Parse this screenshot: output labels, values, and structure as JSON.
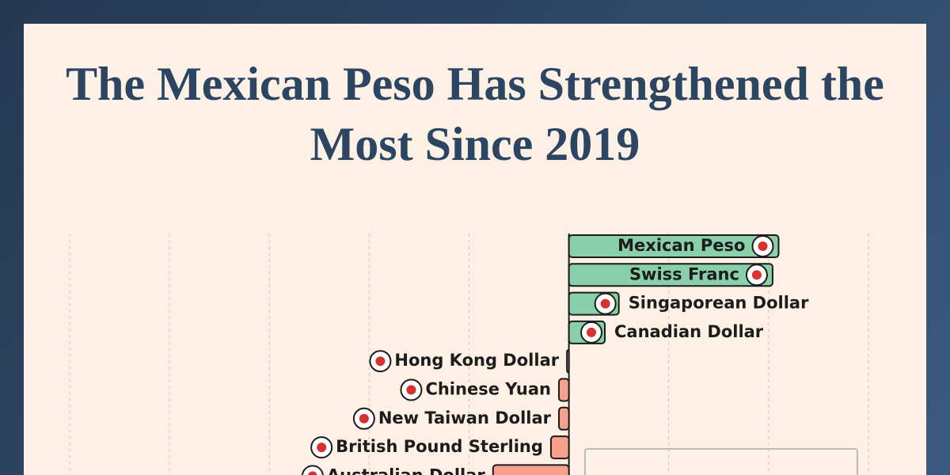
{
  "chart_data": {
    "type": "bar",
    "orientation": "horizontal",
    "title": "The Mexican Peso Has Strengthened the Most Since 2019",
    "categories": [
      "Mexican Peso",
      "Swiss Franc",
      "Singaporean Dollar",
      "Canadian Dollar",
      "Hong Kong Dollar",
      "Chinese Yuan",
      "New Taiwan Dollar",
      "British Pound Sterling",
      "Australian Dollar"
    ],
    "values": [
      10.5,
      10.2,
      2.5,
      1.8,
      -0.1,
      -0.5,
      -0.5,
      -0.9,
      -3.8
    ],
    "colors": {
      "positive": "#88cfaa",
      "negative": "#f7a08b"
    },
    "xlim": [
      -25,
      15
    ],
    "xticks": [
      -25,
      -20,
      -15,
      -10,
      -5,
      0,
      5,
      10,
      15
    ],
    "grid": true
  }
}
